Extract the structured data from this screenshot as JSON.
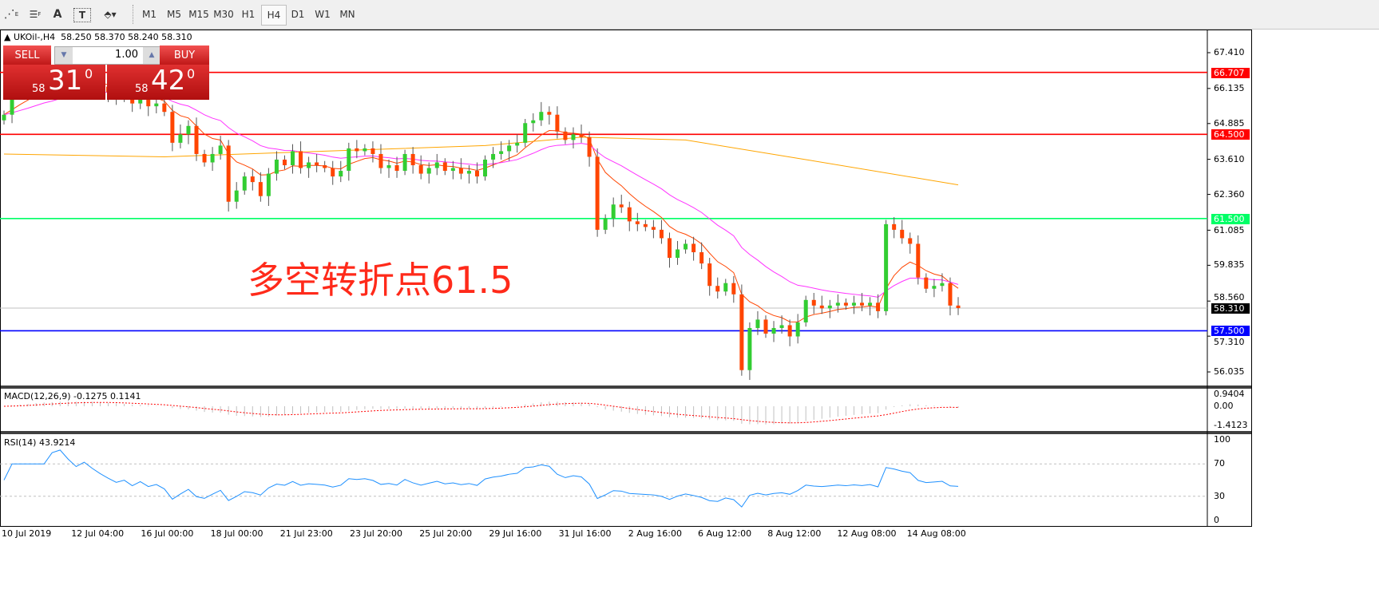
{
  "toolbar": {
    "tools": [
      {
        "icon": "fibonacci-expansion-icon",
        "label": "E"
      },
      {
        "icon": "fibonacci-fan-icon",
        "label": "F"
      },
      {
        "icon": "text-icon",
        "label": "A"
      },
      {
        "icon": "text-label-icon",
        "label": "T"
      },
      {
        "icon": "arrows-dropdown-icon",
        "label": "▾"
      }
    ],
    "timeframes": [
      "M1",
      "M5",
      "M15",
      "M30",
      "H1",
      "H4",
      "D1",
      "W1",
      "MN"
    ],
    "active_timeframe": "H4"
  },
  "header": {
    "symbol": "UKOil-,H4",
    "ohlc": "58.250 58.370 58.240 58.310"
  },
  "trade_panel": {
    "sell_label": "SELL",
    "buy_label": "BUY",
    "quantity": "1.00",
    "sell_small": "58",
    "sell_big": "31",
    "sell_sup": "0",
    "buy_small": "58",
    "buy_big": "42",
    "buy_sup": "0"
  },
  "annotation": "多空转折点61.5",
  "price_axis": [
    "67.410",
    "66.135",
    "64.885",
    "63.610",
    "62.360",
    "61.085",
    "59.835",
    "58.560",
    "57.310",
    "56.035"
  ],
  "levels": [
    {
      "price": 66.707,
      "label": "66.707",
      "color": "#ff0000"
    },
    {
      "price": 64.5,
      "label": "64.500",
      "color": "#ff0000"
    },
    {
      "price": 61.5,
      "label": "61.500",
      "color": "#00ff66"
    },
    {
      "price": 58.31,
      "label": "58.310",
      "color": "#000000",
      "current": true
    },
    {
      "price": 57.5,
      "label": "57.500",
      "color": "#0000ff"
    }
  ],
  "macd": {
    "label": "MACD(12,26,9) -0.1275 0.1141",
    "axis": [
      "0.9404",
      "0.00",
      "-1.4123"
    ]
  },
  "rsi": {
    "label": "RSI(14) 43.9214",
    "axis": [
      "100",
      "70",
      "30",
      "0"
    ]
  },
  "time_axis": [
    "10 Jul 2019",
    "12 Jul 04:00",
    "16 Jul 00:00",
    "18 Jul 00:00",
    "21 Jul 23:00",
    "23 Jul 20:00",
    "25 Jul 20:00",
    "29 Jul 16:00",
    "31 Jul 16:00",
    "2 Aug 16:00",
    "6 Aug 12:00",
    "8 Aug 12:00",
    "12 Aug 08:00",
    "14 Aug 08:00"
  ],
  "colors": {
    "bull": "#32cd32",
    "bear": "#ff4500",
    "ma_fast": "#ff4500",
    "ma_mid": "#ff33ff",
    "ma_slow": "#ffa500",
    "rsi": "#1e90ff",
    "macd_signal": "#ff0000"
  },
  "chart_data": {
    "type": "candlestick",
    "closes": [
      65.2,
      66.0,
      66.2,
      66.3,
      66.5,
      66.6,
      66.4,
      66.7,
      66.5,
      66.3,
      66.6,
      66.4,
      66.2,
      66.0,
      65.8,
      65.9,
      65.6,
      65.8,
      65.5,
      65.6,
      65.3,
      64.2,
      64.5,
      64.8,
      63.8,
      63.5,
      63.8,
      64.1,
      62.1,
      62.5,
      63.0,
      62.8,
      62.3,
      63.1,
      63.6,
      63.4,
      63.9,
      63.3,
      63.5,
      63.4,
      63.3,
      63.0,
      63.2,
      64.0,
      63.9,
      64.0,
      63.8,
      63.3,
      63.4,
      63.2,
      63.8,
      63.4,
      63.1,
      63.3,
      63.5,
      63.2,
      63.3,
      63.1,
      63.2,
      63.0,
      63.6,
      63.8,
      63.9,
      64.1,
      64.2,
      64.9,
      65.0,
      65.3,
      65.2,
      64.6,
      64.3,
      64.5,
      64.4,
      63.7,
      61.1,
      61.5,
      62.0,
      61.9,
      61.4,
      61.3,
      61.2,
      61.1,
      60.8,
      60.1,
      60.4,
      60.6,
      60.3,
      59.9,
      59.1,
      58.9,
      59.2,
      58.8,
      56.1,
      57.6,
      57.9,
      57.4,
      57.6,
      57.7,
      57.3,
      57.8,
      58.6,
      58.4,
      58.3,
      58.4,
      58.5,
      58.4,
      58.5,
      58.4,
      58.5,
      58.2,
      61.3,
      61.1,
      60.8,
      60.6,
      59.4,
      59.0,
      59.1,
      59.2,
      58.4,
      58.31
    ],
    "ma_slow": [
      [
        0,
        63.8
      ],
      [
        20,
        63.7
      ],
      [
        40,
        63.9
      ],
      [
        60,
        64.1
      ],
      [
        72,
        64.4
      ],
      [
        85,
        64.3
      ],
      [
        100,
        63.6
      ],
      [
        119,
        62.7
      ]
    ],
    "ylim": [
      56.035,
      67.41
    ]
  }
}
